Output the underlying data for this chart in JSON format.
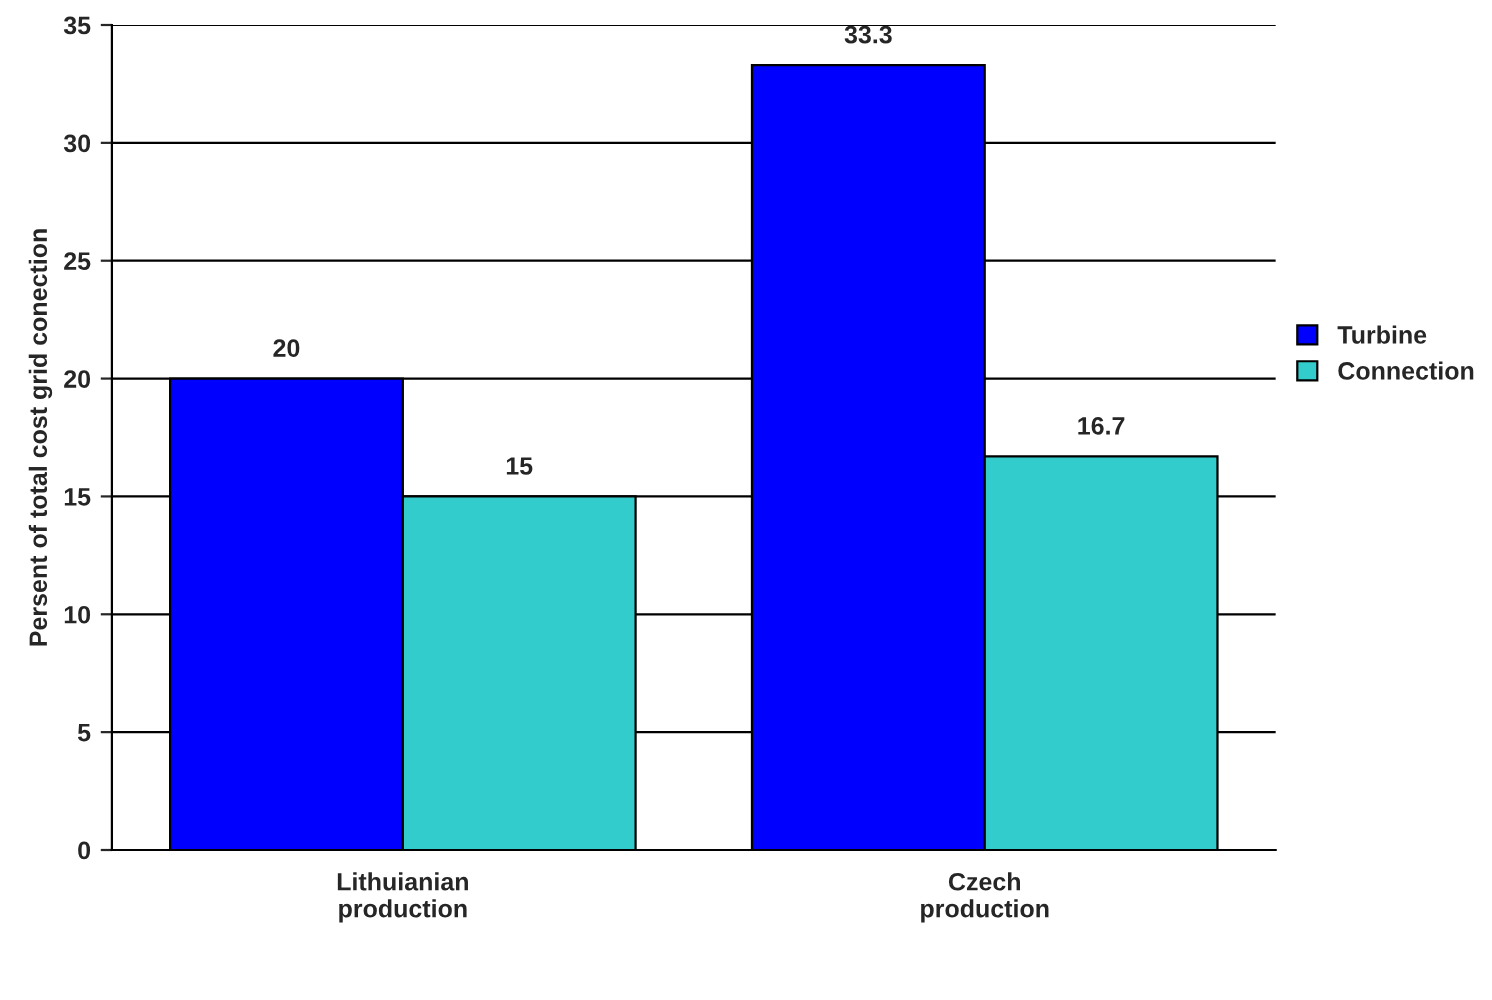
{
  "chart_data": {
    "type": "bar",
    "ylabel": "Persent of total cost grid conection",
    "categories": [
      "Lithuianian\nproduction",
      "Czech\nproduction"
    ],
    "series": [
      {
        "name": "Turbine",
        "color": "#0000ff",
        "values": [
          20,
          33.3
        ]
      },
      {
        "name": "Connection",
        "color": "#33cccc",
        "values": [
          15,
          16.7
        ]
      }
    ],
    "ylim": [
      0,
      35
    ],
    "yticks": [
      0,
      5,
      10,
      15,
      20,
      25,
      30,
      35
    ],
    "grid": "y",
    "legend": "right",
    "data_labels": true
  }
}
